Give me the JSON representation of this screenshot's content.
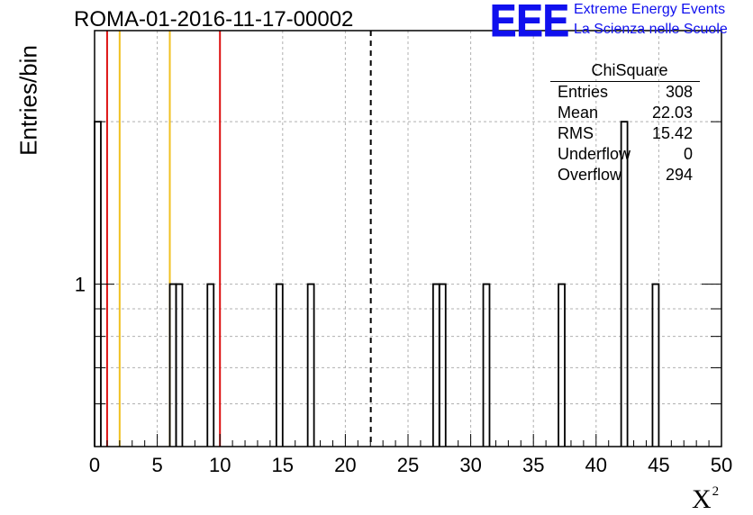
{
  "header": {
    "run_title": "ROMA-01-2016-11-17-00002"
  },
  "logo": {
    "mark": "EEE",
    "line1": "Extreme Energy Events",
    "line2": "La Scienza nelle Scuole",
    "color": "#1010ee"
  },
  "stats": {
    "title": "ChiSquare",
    "rows": [
      {
        "label": "Entries",
        "value": "308"
      },
      {
        "label": "Mean",
        "value": "22.03"
      },
      {
        "label": "RMS",
        "value": "15.42"
      },
      {
        "label": "Underflow",
        "value": "0"
      },
      {
        "label": "Overflow",
        "value": "294"
      }
    ]
  },
  "chart_data": {
    "type": "bar",
    "title": "ROMA-01-2016-11-17-00002",
    "xlabel": "X",
    "xlabel_superscript": "2",
    "ylabel": "Entries/bin",
    "xlim": [
      0,
      50
    ],
    "ylim": [
      0.5,
      2.95
    ],
    "y_log_scale": true,
    "grid": true,
    "bin_width": 0.5,
    "x_ticks": [
      0,
      5,
      10,
      15,
      20,
      25,
      30,
      35,
      40,
      45,
      50
    ],
    "y_ticks": [
      1
    ],
    "bins": [
      {
        "x": 0.0,
        "value": 2
      },
      {
        "x": 6.0,
        "value": 1
      },
      {
        "x": 6.5,
        "value": 1
      },
      {
        "x": 9.0,
        "value": 1
      },
      {
        "x": 14.5,
        "value": 1
      },
      {
        "x": 17.0,
        "value": 1
      },
      {
        "x": 27.0,
        "value": 1
      },
      {
        "x": 27.5,
        "value": 1
      },
      {
        "x": 31.0,
        "value": 1
      },
      {
        "x": 37.0,
        "value": 1
      },
      {
        "x": 42.0,
        "value": 2
      },
      {
        "x": 44.5,
        "value": 1
      }
    ],
    "vlines": [
      {
        "x": 1,
        "color": "#dd1111",
        "style": "solid"
      },
      {
        "x": 2,
        "color": "#f0c020",
        "style": "solid"
      },
      {
        "x": 6,
        "color": "#f0c020",
        "style": "solid"
      },
      {
        "x": 10,
        "color": "#dd1111",
        "style": "solid"
      },
      {
        "x": 22.03,
        "color": "#000000",
        "style": "dashed"
      }
    ]
  }
}
